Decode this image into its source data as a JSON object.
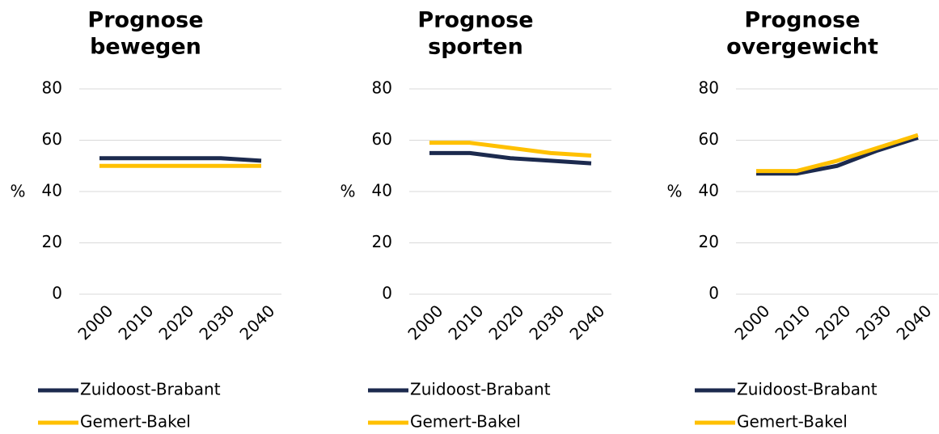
{
  "chart_data": [
    {
      "type": "line",
      "title": [
        "Prognose",
        "bewegen"
      ],
      "ylabel": "%",
      "categories": [
        "2000",
        "2010",
        "2020",
        "2030",
        "2040"
      ],
      "series": [
        {
          "name": "Zuidoost-Brabant",
          "color": "#1c2a4e",
          "values": [
            53,
            53,
            53,
            53,
            52
          ]
        },
        {
          "name": "Gemert-Bakel",
          "color": "#ffc000",
          "values": [
            50,
            50,
            50,
            50,
            50
          ]
        }
      ],
      "ylim": [
        0,
        80
      ],
      "yticks": [
        0,
        20,
        40,
        60,
        80
      ],
      "grid": true,
      "legend": "bottom"
    },
    {
      "type": "line",
      "title": [
        "Prognose",
        "sporten"
      ],
      "ylabel": "%",
      "categories": [
        "2000",
        "2010",
        "2020",
        "2030",
        "2040"
      ],
      "series": [
        {
          "name": "Zuidoost-Brabant",
          "color": "#1c2a4e",
          "values": [
            55,
            55,
            53,
            52,
            51
          ]
        },
        {
          "name": "Gemert-Bakel",
          "color": "#ffc000",
          "values": [
            59,
            59,
            57,
            55,
            54
          ]
        }
      ],
      "ylim": [
        0,
        80
      ],
      "yticks": [
        0,
        20,
        40,
        60,
        80
      ],
      "grid": true,
      "legend": "bottom"
    },
    {
      "type": "line",
      "title": [
        "Prognose",
        "overgewicht"
      ],
      "ylabel": "%",
      "categories": [
        "2000",
        "2010",
        "2020",
        "2030",
        "2040"
      ],
      "series": [
        {
          "name": "Zuidoost-Brabant",
          "color": "#1c2a4e",
          "values": [
            47,
            47,
            50,
            56,
            61
          ]
        },
        {
          "name": "Gemert-Bakel",
          "color": "#ffc000",
          "values": [
            48,
            48,
            52,
            57,
            62
          ]
        }
      ],
      "ylim": [
        0,
        80
      ],
      "yticks": [
        0,
        20,
        40,
        60,
        80
      ],
      "grid": true,
      "legend": "bottom"
    }
  ]
}
